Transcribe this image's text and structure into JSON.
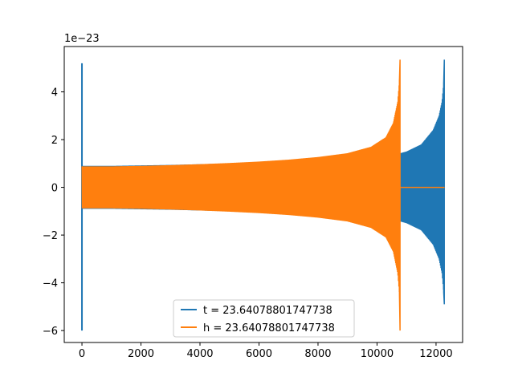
{
  "chart_data": {
    "type": "line",
    "title": "",
    "xlabel": "",
    "ylabel": "",
    "xlim": [
      -600,
      12900
    ],
    "ylim": [
      -6.5,
      5.9
    ],
    "y_offset_label": "1e−23",
    "x_ticks": [
      0,
      2000,
      4000,
      6000,
      8000,
      10000,
      12000
    ],
    "x_tick_labels": [
      "0",
      "2000",
      "4000",
      "6000",
      "8000",
      "10000",
      "12000"
    ],
    "y_ticks": [
      -6,
      -4,
      -2,
      0,
      2,
      4
    ],
    "y_tick_labels": [
      "−6",
      "−4",
      "−2",
      "0",
      "2",
      "4"
    ],
    "grid": false,
    "legend_position": "lower-center",
    "series": [
      {
        "name": "t = 23.64078801747738",
        "color": "#1f77b4",
        "envelope": [
          [
            0,
            0.9
          ],
          [
            1000,
            0.9
          ],
          [
            2000,
            0.92
          ],
          [
            3000,
            0.94
          ],
          [
            4000,
            0.97
          ],
          [
            5000,
            1.0
          ],
          [
            6000,
            1.03
          ],
          [
            7000,
            1.07
          ],
          [
            8000,
            1.12
          ],
          [
            9000,
            1.2
          ],
          [
            10000,
            1.3
          ],
          [
            10700,
            1.4
          ],
          [
            11000,
            1.5
          ],
          [
            11500,
            1.8
          ],
          [
            11900,
            2.4
          ],
          [
            12100,
            3.0
          ],
          [
            12200,
            3.6
          ],
          [
            12260,
            4.4
          ]
        ],
        "spike_start": {
          "x": 0,
          "max": 5.2,
          "min": -6.0
        },
        "spike_end": {
          "x": 12280,
          "max": 5.35,
          "min": -4.9
        },
        "x_end": 12290
      },
      {
        "name": "h = 23.64078801747738",
        "color": "#ff7f0e",
        "envelope": [
          [
            0,
            0.88
          ],
          [
            1000,
            0.88
          ],
          [
            2000,
            0.9
          ],
          [
            3000,
            0.93
          ],
          [
            4000,
            0.97
          ],
          [
            5000,
            1.02
          ],
          [
            6000,
            1.08
          ],
          [
            7000,
            1.16
          ],
          [
            8000,
            1.27
          ],
          [
            9000,
            1.43
          ],
          [
            9800,
            1.7
          ],
          [
            10300,
            2.1
          ],
          [
            10550,
            2.7
          ],
          [
            10700,
            3.6
          ],
          [
            10760,
            4.5
          ]
        ],
        "spike_end": {
          "x": 10780,
          "max": 5.35,
          "min": -6.0
        },
        "flat_after": {
          "x_start": 10790,
          "x_end": 12290,
          "y": 0
        }
      }
    ]
  }
}
